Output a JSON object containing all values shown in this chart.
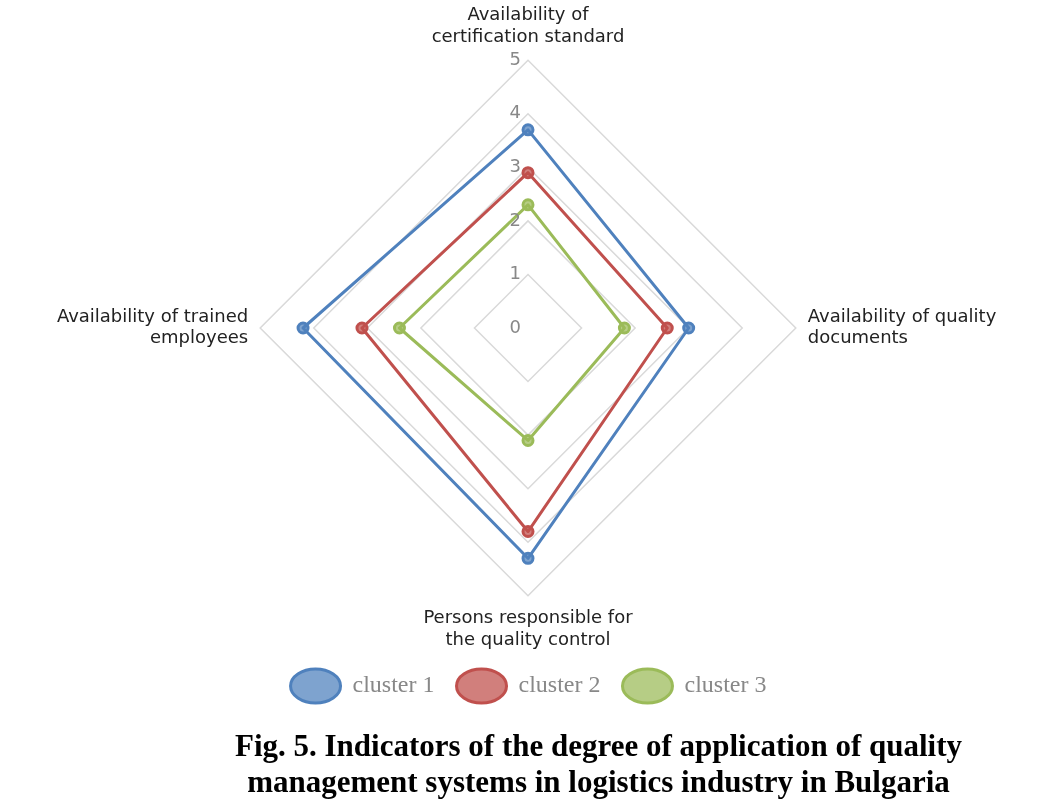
{
  "chart_data": {
    "type": "radar",
    "title": "Fig. 5. Indicators of the degree of application of quality management systems in logistics industry in Bulgaria",
    "categories": [
      "Availability of certification standard",
      "Availability of quality documents",
      "Persons responsible for the quality control",
      "Availability of trained employees"
    ],
    "series": [
      {
        "name": "cluster 1",
        "color": "#4f81bd",
        "values": [
          3.7,
          3.0,
          4.3,
          4.2
        ]
      },
      {
        "name": "cluster 2",
        "color": "#c0504d",
        "values": [
          2.9,
          2.6,
          3.8,
          3.1
        ]
      },
      {
        "name": "cluster 3",
        "color": "#9bbb59",
        "values": [
          2.3,
          1.8,
          2.1,
          2.4
        ]
      }
    ],
    "ylim": [
      0,
      5
    ],
    "yticks": [
      0,
      1,
      2,
      3,
      4,
      5
    ],
    "grid": true,
    "legend": "bottom",
    "marker": "circle",
    "line_style": "solid"
  }
}
